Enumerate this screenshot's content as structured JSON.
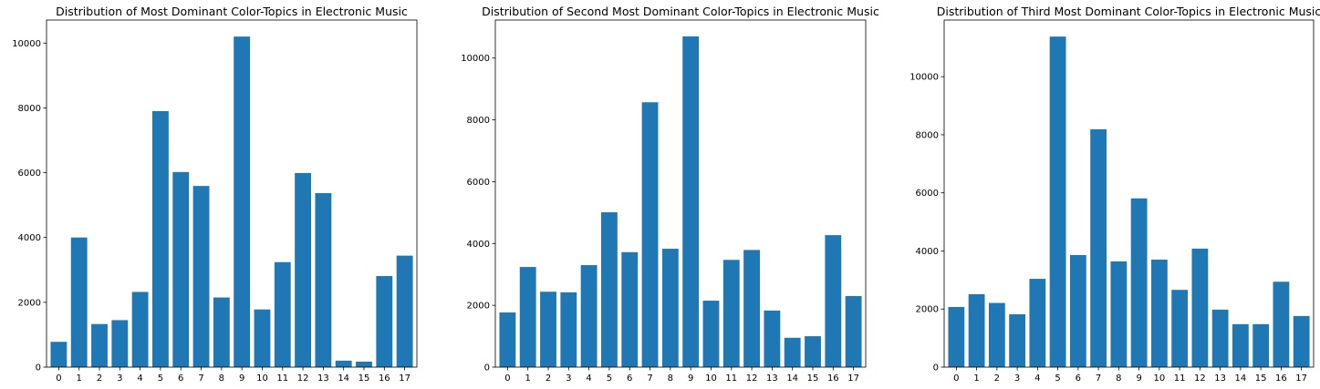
{
  "chart_data": [
    {
      "type": "bar",
      "title": "Distribution of Most Dominant Color-Topics in Electronic Music",
      "xlabel": "",
      "ylabel": "",
      "categories": [
        "0",
        "1",
        "2",
        "3",
        "4",
        "5",
        "6",
        "7",
        "8",
        "9",
        "10",
        "11",
        "12",
        "13",
        "14",
        "15",
        "16",
        "17"
      ],
      "values": [
        780,
        4000,
        1330,
        1450,
        2320,
        7900,
        6020,
        5590,
        2150,
        10200,
        1780,
        3240,
        5990,
        5370,
        200,
        170,
        2810,
        3440
      ],
      "ylim": [
        0,
        10710
      ],
      "yticks": [
        0,
        2000,
        4000,
        6000,
        8000,
        10000
      ],
      "color": "#1f77b4",
      "grid": false
    },
    {
      "type": "bar",
      "title": "Distribution of Second Most Dominant Color-Topics in Electronic Music",
      "xlabel": "",
      "ylabel": "",
      "categories": [
        "0",
        "1",
        "2",
        "3",
        "4",
        "5",
        "6",
        "7",
        "8",
        "9",
        "10",
        "11",
        "12",
        "13",
        "14",
        "15",
        "16",
        "17"
      ],
      "values": [
        1770,
        3240,
        2440,
        2420,
        3300,
        5010,
        3720,
        8570,
        3830,
        10700,
        2150,
        3470,
        3790,
        1830,
        950,
        1000,
        4270,
        2300
      ],
      "ylim": [
        0,
        11230
      ],
      "yticks": [
        0,
        2000,
        4000,
        6000,
        8000,
        10000
      ],
      "color": "#1f77b4",
      "grid": false
    },
    {
      "type": "bar",
      "title": "Distribution of Third Most Dominant Color-Topics in Electronic Music",
      "xlabel": "",
      "ylabel": "",
      "categories": [
        "0",
        "1",
        "2",
        "3",
        "4",
        "5",
        "6",
        "7",
        "8",
        "9",
        "10",
        "11",
        "12",
        "13",
        "14",
        "15",
        "16",
        "17"
      ],
      "values": [
        2070,
        2510,
        2210,
        1820,
        3040,
        11380,
        3860,
        8190,
        3640,
        5810,
        3700,
        2660,
        4080,
        1980,
        1480,
        1480,
        2940,
        1760
      ],
      "ylim": [
        0,
        11950
      ],
      "yticks": [
        0,
        2000,
        4000,
        6000,
        8000,
        10000
      ],
      "color": "#1f77b4",
      "grid": false
    }
  ]
}
